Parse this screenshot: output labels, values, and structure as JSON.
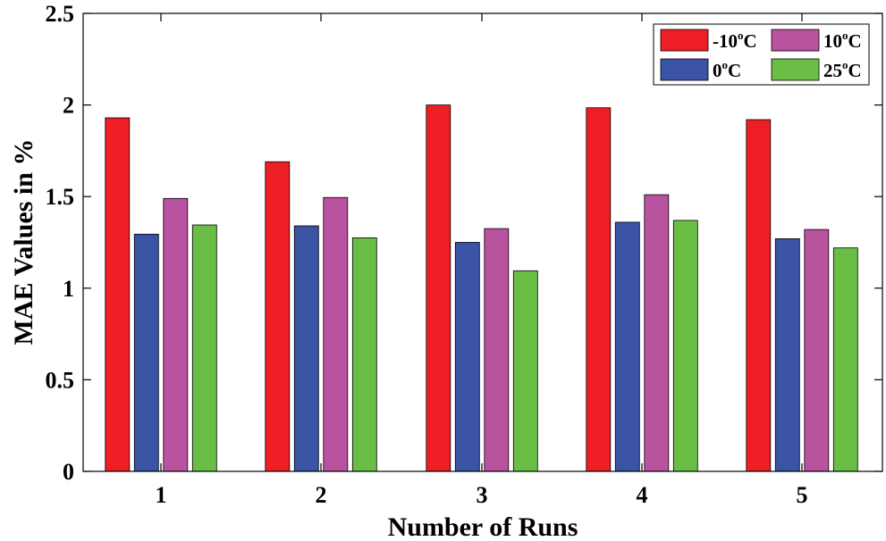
{
  "chart_data": {
    "type": "bar",
    "xlabel": "Number of Runs",
    "ylabel": "MAE Values in %",
    "categories": [
      "1",
      "2",
      "3",
      "4",
      "5"
    ],
    "ylim": [
      0,
      2.5
    ],
    "yticks": [
      0,
      0.5,
      1,
      1.5,
      2,
      2.5
    ],
    "ytick_labels": [
      "0",
      "0.5",
      "1",
      "1.5",
      "2",
      "2.5"
    ],
    "grid": false,
    "legend_position": "top-right",
    "series": [
      {
        "name_prefix": "-10",
        "name_sup": "o",
        "name_suffix": "C",
        "color": "#ed1f24",
        "values": [
          1.93,
          1.69,
          2.0,
          1.985,
          1.92
        ]
      },
      {
        "name_prefix": "0",
        "name_sup": "o",
        "name_suffix": "C",
        "color": "#3a53a4",
        "values": [
          1.295,
          1.34,
          1.25,
          1.36,
          1.27
        ]
      },
      {
        "name_prefix": "10",
        "name_sup": "o",
        "name_suffix": "C",
        "color": "#b9529f",
        "values": [
          1.49,
          1.495,
          1.325,
          1.51,
          1.32
        ]
      },
      {
        "name_prefix": "25",
        "name_sup": "o",
        "name_suffix": "C",
        "color": "#6abd45",
        "values": [
          1.345,
          1.275,
          1.095,
          1.37,
          1.22
        ]
      }
    ]
  }
}
